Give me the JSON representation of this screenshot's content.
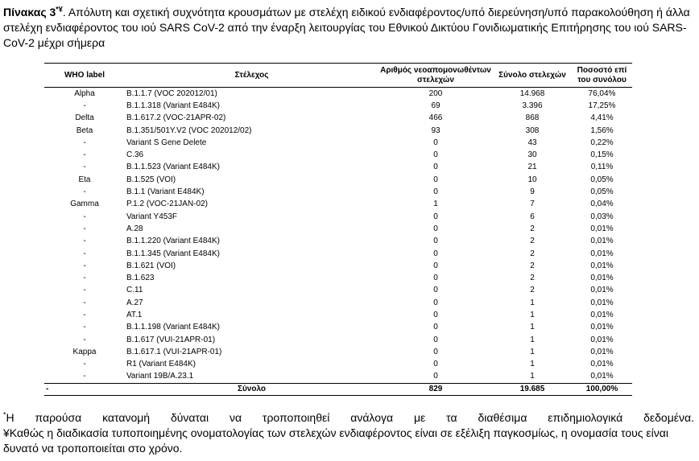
{
  "caption": {
    "label": "Πίνακας 3",
    "marks": "*¥",
    "text": ". Απόλυτη και σχετική συχνότητα κρουσμάτων με στελέχη ειδικού ενδιαφέροντος/υπό διερεύνηση/υπό παρακολούθηση ή άλλα στελέχη ενδιαφέροντος του ιού SARS CoV-2 από την έναρξη λειτουργίας του Εθνικού Δικτύου Γονιδιωματικής Επιτήρησης του ιού SARS-CoV-2 μέχρι σήμερα"
  },
  "table": {
    "headers": [
      "WHO label",
      "Στέλεχος",
      "Αριθμός νεοαπομονωθέντων στελεχών",
      "Σύνολο στελεχών",
      "Ποσοστό επί του συνόλου"
    ],
    "rows": [
      [
        "Alpha",
        "B.1.1.7 (VOC 202012/01)",
        "200",
        "14.968",
        "76,04%"
      ],
      [
        "-",
        "B.1.1.318 (Variant E484K)",
        "69",
        "3.396",
        "17,25%"
      ],
      [
        "Delta",
        "B.1.617.2 (VOC-21APR-02)",
        "466",
        "868",
        "4,41%"
      ],
      [
        "Beta",
        "B.1.351/501Y.V2 (VOC 202012/02)",
        "93",
        "308",
        "1,56%"
      ],
      [
        "-",
        "Variant S Gene Delete",
        "0",
        "43",
        "0,22%"
      ],
      [
        "-",
        "C.36",
        "0",
        "30",
        "0,15%"
      ],
      [
        "-",
        "B.1.1.523 (Variant E484K)",
        "0",
        "21",
        "0,11%"
      ],
      [
        "Eta",
        "B.1.525 (VOI)",
        "0",
        "10",
        "0,05%"
      ],
      [
        "-",
        "B.1.1 (Variant E484K)",
        "0",
        "9",
        "0,05%"
      ],
      [
        "Gamma",
        "P.1.2 (VOC-21JAN-02)",
        "1",
        "7",
        "0,04%"
      ],
      [
        "-",
        "Variant Y453F",
        "0",
        "6",
        "0,03%"
      ],
      [
        "-",
        "A.28",
        "0",
        "2",
        "0,01%"
      ],
      [
        "-",
        "B.1.1.220 (Variant E484K)",
        "0",
        "2",
        "0,01%"
      ],
      [
        "-",
        "B.1.1.345 (Variant E484K)",
        "0",
        "2",
        "0,01%"
      ],
      [
        "-",
        "B.1.621 (VOI)",
        "0",
        "2",
        "0,01%"
      ],
      [
        "-",
        "B.1.623",
        "0",
        "2",
        "0,01%"
      ],
      [
        "-",
        "C.11",
        "0",
        "2",
        "0,01%"
      ],
      [
        "-",
        "A.27",
        "0",
        "1",
        "0,01%"
      ],
      [
        "-",
        "AT.1",
        "0",
        "1",
        "0,01%"
      ],
      [
        "-",
        "B.1.1.198 (Variant E484K)",
        "0",
        "1",
        "0,01%"
      ],
      [
        "-",
        "B.1.617 (VUI-21APR-01)",
        "0",
        "1",
        "0,01%"
      ],
      [
        "Kappa",
        "B.1.617.1 (VUI-21APR-01)",
        "0",
        "1",
        "0,01%"
      ],
      [
        "-",
        "R1 (Variant E484K)",
        "0",
        "1",
        "0,01%"
      ],
      [
        "-",
        "Variant 19B/A.23.1",
        "0",
        "1",
        "0,01%"
      ]
    ],
    "total": [
      "-",
      "Σύνολο",
      "829",
      "19.685",
      "100,00%"
    ]
  },
  "footnotes": [
    {
      "mark": "*",
      "text": "Η παρούσα κατανομή δύναται να τροποποιηθεί ανάλογα με τα διαθέσιμα επιδημιολογικά δεδομένα."
    },
    {
      "mark": "¥",
      "text": "Καθώς η διαδικασία τυποποιημένης ονοματολογίας των στελεχών ενδιαφέροντος είναι σε εξέλιξη παγκοσμίως, η ονομασία τους είναι δυνατό να τροποποιείται στο χρόνο."
    }
  ]
}
